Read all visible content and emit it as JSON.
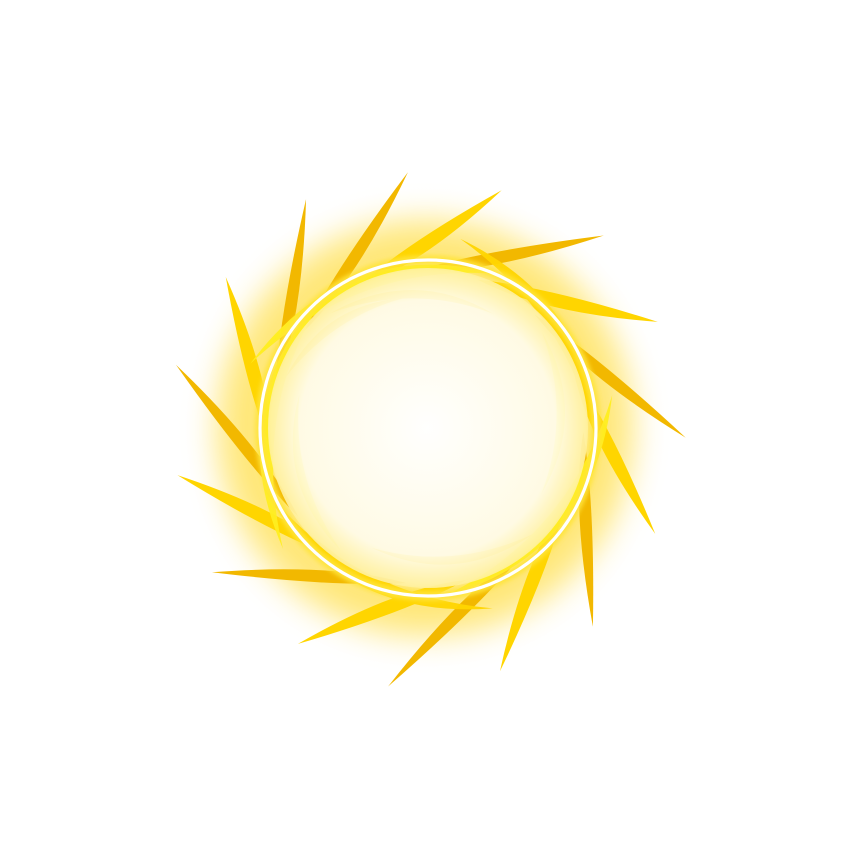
{
  "image": {
    "subject": "golden-sun-ring",
    "background_color": "#ffffff",
    "colors": {
      "spike_dark": "#f2b800",
      "spike_mid": "#ffd500",
      "spike_light": "#ffee20",
      "ring_core": "#ffffff",
      "glow": "#ffe36a"
    }
  }
}
